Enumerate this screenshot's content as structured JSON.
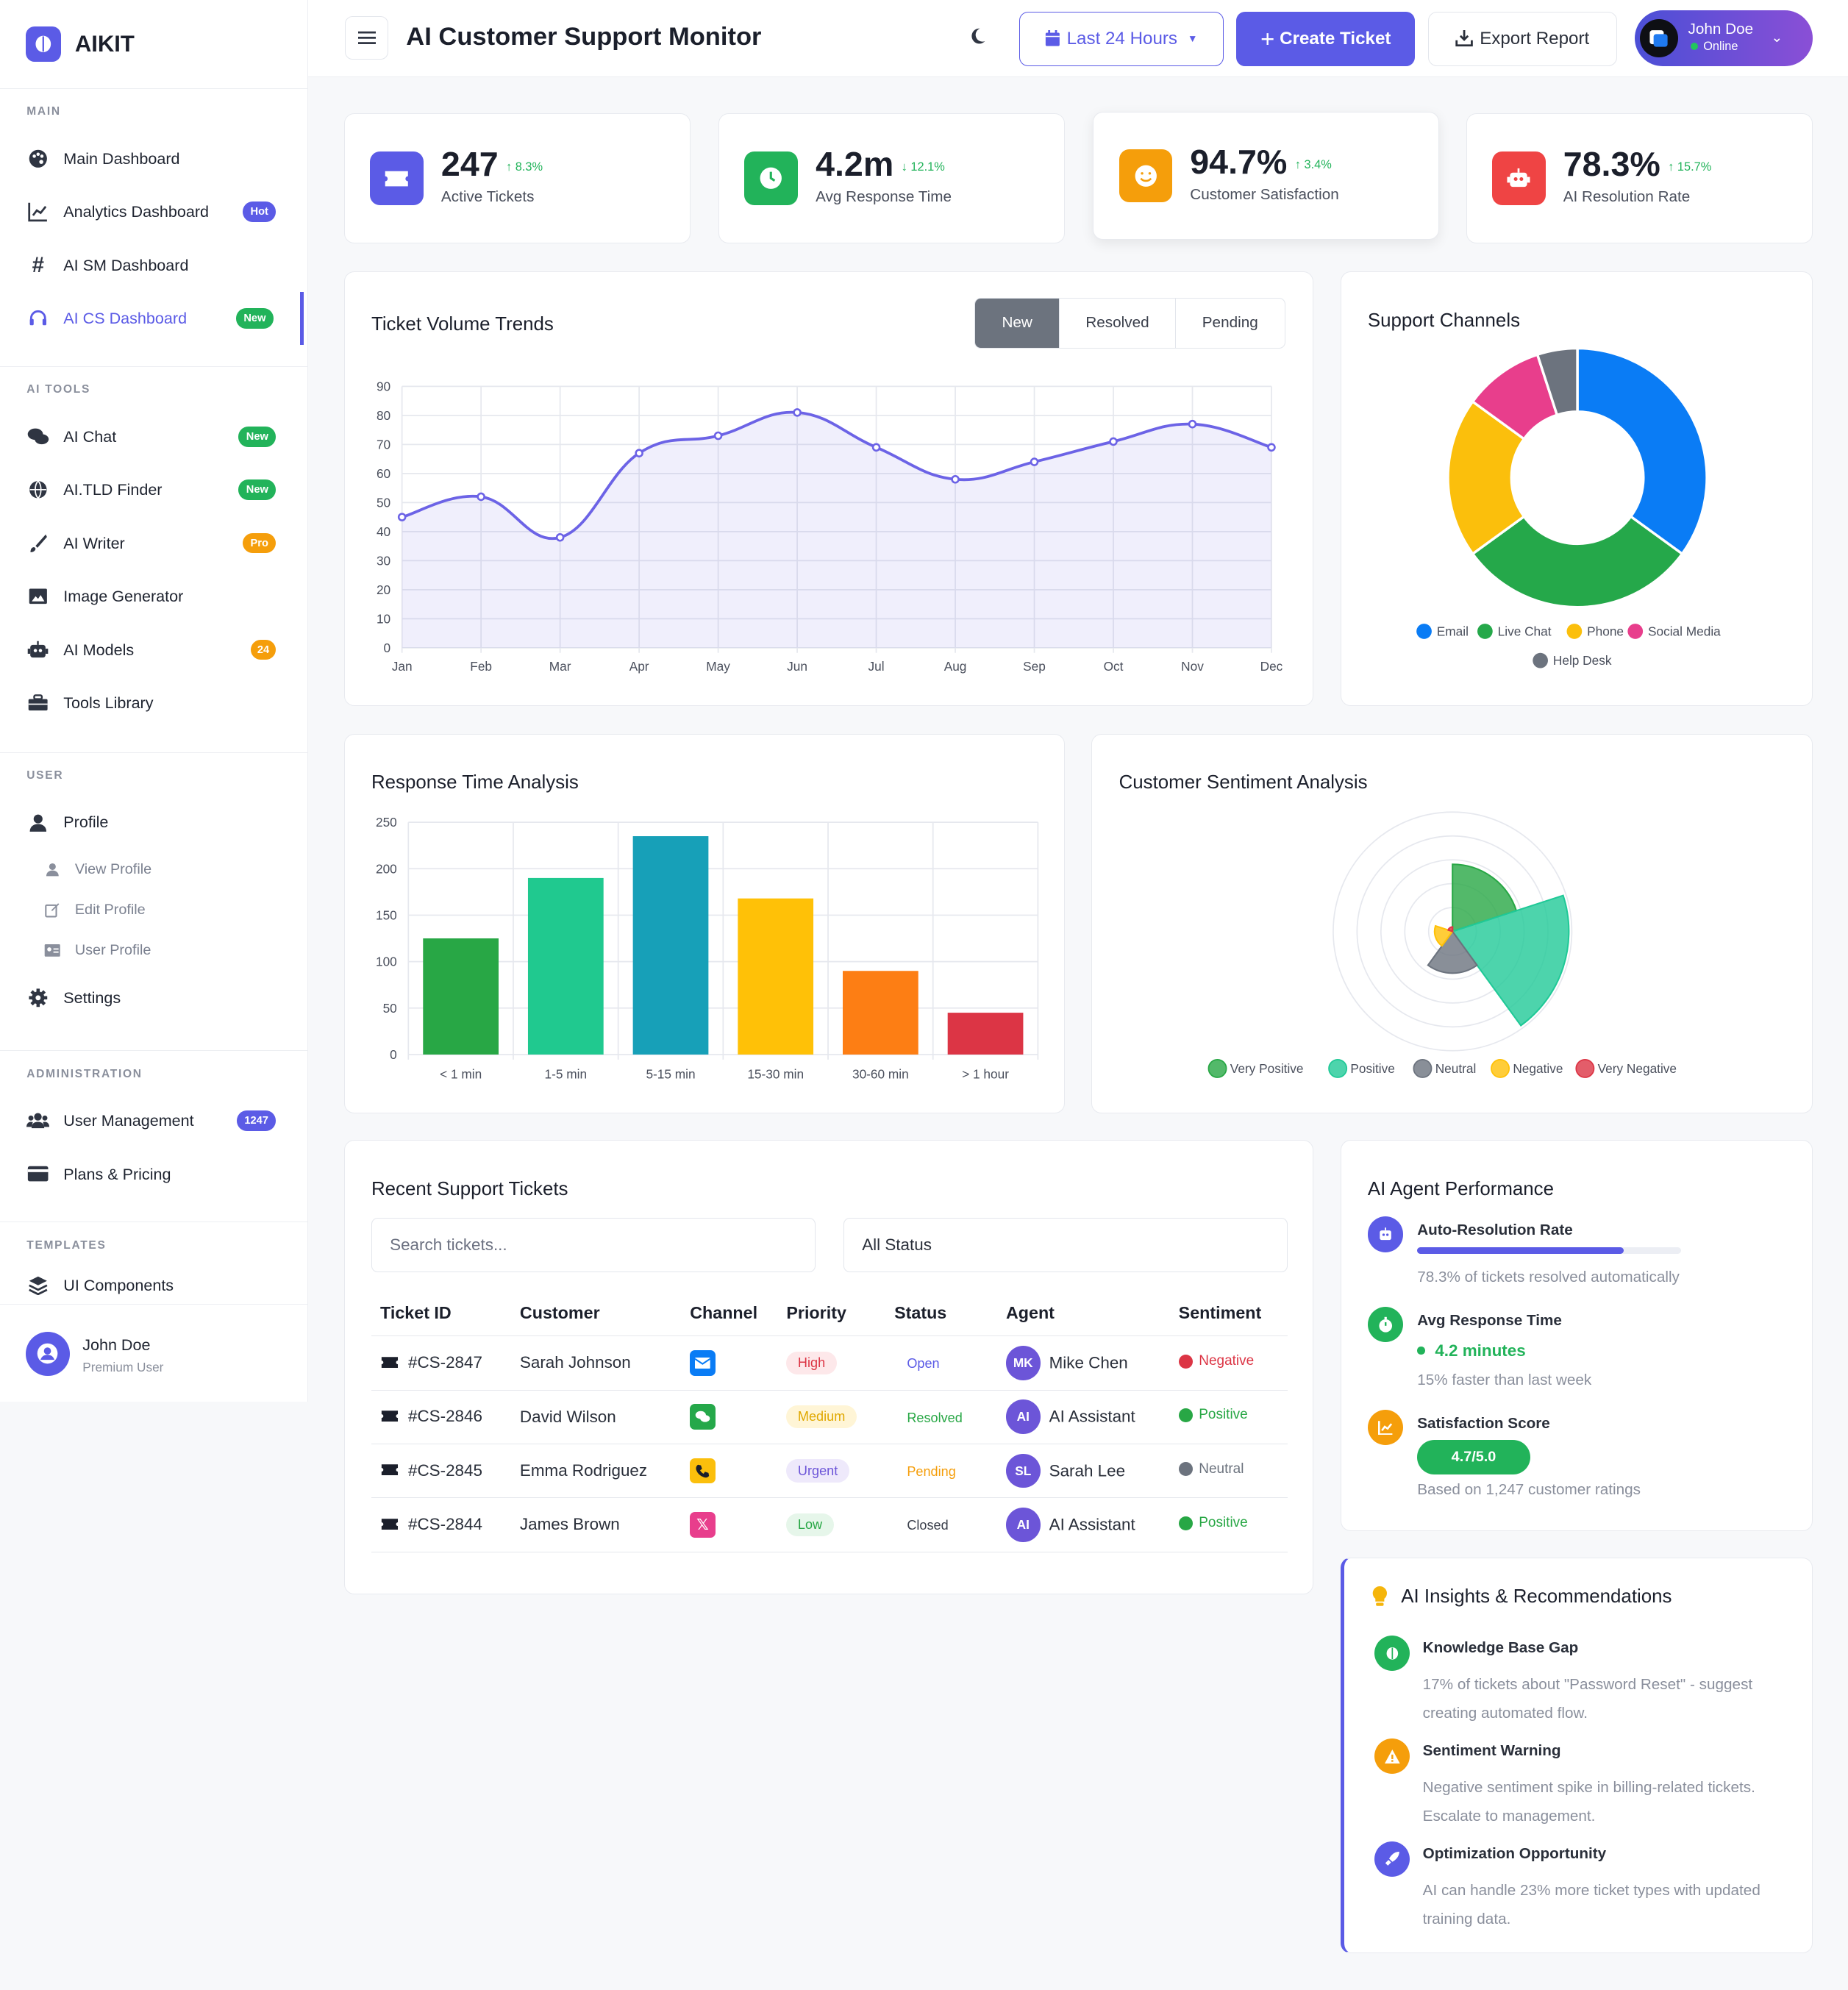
{
  "brand": {
    "name": "AIKIT"
  },
  "sidebar": {
    "main_title": "MAIN",
    "main": [
      {
        "label": "Main Dashboard"
      },
      {
        "label": "Analytics Dashboard",
        "badge": "Hot"
      },
      {
        "label": "AI SM Dashboard"
      },
      {
        "label": "AI CS Dashboard",
        "badge": "New"
      }
    ],
    "tools_title": "AI TOOLS",
    "tools": [
      {
        "label": "AI Chat",
        "badge": "New"
      },
      {
        "label": "AI.TLD Finder",
        "badge": "New"
      },
      {
        "label": "AI Writer",
        "badge": "Pro"
      },
      {
        "label": "Image Generator"
      },
      {
        "label": "AI Models",
        "badge": "24"
      },
      {
        "label": "Tools Library"
      }
    ],
    "user_title": "USER",
    "profile": "Profile",
    "profile_sub": [
      "View Profile",
      "Edit Profile",
      "User Profile"
    ],
    "settings": "Settings",
    "admin_title": "ADMINISTRATION",
    "admin": [
      {
        "label": "User Management",
        "badge": "1247"
      },
      {
        "label": "Plans & Pricing"
      }
    ],
    "templates_title": "TEMPLATES",
    "templates": [
      {
        "label": "UI Components"
      }
    ],
    "footer_user": {
      "name": "John Doe",
      "role": "Premium User"
    }
  },
  "header": {
    "title": "AI Customer Support Monitor",
    "range_label": "Last 24 Hours",
    "create_label": "Create Ticket",
    "export_label": "Export Report",
    "user_name": "John Doe",
    "user_status": "Online"
  },
  "kpis": [
    {
      "value": "247",
      "delta": "8.3%",
      "label": "Active Tickets",
      "color": "#5b5be6"
    },
    {
      "value": "4.2m",
      "delta": "12.1%",
      "label": "Avg Response Time",
      "color": "#22b35a"
    },
    {
      "value": "94.7%",
      "delta": "3.4%",
      "label": "Customer Satisfaction",
      "color": "#f59e0b"
    },
    {
      "value": "78.3%",
      "delta": "15.7%",
      "label": "AI Resolution Rate",
      "color": "#ef4444"
    }
  ],
  "volume": {
    "title": "Ticket Volume Trends",
    "tabs": [
      "New",
      "Resolved",
      "Pending"
    ]
  },
  "channels": {
    "title": "Support Channels"
  },
  "response": {
    "title": "Response Time Analysis"
  },
  "sentiment": {
    "title": "Customer Sentiment Analysis"
  },
  "tickets": {
    "title": "Recent Support Tickets",
    "search_placeholder": "Search tickets...",
    "status_filter": "All Status",
    "columns": [
      "Ticket ID",
      "Customer",
      "Channel",
      "Priority",
      "Status",
      "Agent",
      "Sentiment"
    ],
    "rows": [
      {
        "id": "#CS-2847",
        "customer": "Sarah Johnson",
        "channel": "email",
        "priority": "High",
        "status": "Open",
        "agent_initials": "MK",
        "agent": "Mike Chen",
        "sentiment": "Negative"
      },
      {
        "id": "#CS-2846",
        "customer": "David Wilson",
        "channel": "chat",
        "priority": "Medium",
        "status": "Resolved",
        "agent_initials": "AI",
        "agent": "AI Assistant",
        "sentiment": "Positive"
      },
      {
        "id": "#CS-2845",
        "customer": "Emma Rodriguez",
        "channel": "phone",
        "priority": "Urgent",
        "status": "Pending",
        "agent_initials": "SL",
        "agent": "Sarah Lee",
        "sentiment": "Neutral"
      },
      {
        "id": "#CS-2844",
        "customer": "James Brown",
        "channel": "social",
        "priority": "Low",
        "status": "Closed",
        "agent_initials": "AI",
        "agent": "AI Assistant",
        "sentiment": "Positive"
      }
    ]
  },
  "agent_perf": {
    "title": "AI Agent Performance",
    "auto_title": "Auto-Resolution Rate",
    "auto_progress": 0.783,
    "auto_desc": "78.3% of tickets resolved automatically",
    "resp_title": "Avg Response Time",
    "resp_value": "4.2 minutes",
    "resp_desc": "15% faster than last week",
    "sat_title": "Satisfaction Score",
    "sat_value": "4.7/5.0",
    "sat_desc": "Based on 1,247 customer ratings"
  },
  "insights": {
    "title": "AI Insights & Recommendations",
    "items": [
      {
        "title": "Knowledge Base Gap",
        "line1": "17% of tickets about \"Password Reset\" - suggest",
        "line2": "creating automated flow."
      },
      {
        "title": "Sentiment Warning",
        "line1": "Negative sentiment spike in billing-related tickets.",
        "line2": "Escalate to management."
      },
      {
        "title": "Optimization Opportunity",
        "line1": "AI can handle 23% more ticket types with updated",
        "line2": "training data."
      }
    ]
  },
  "chart_data": [
    {
      "type": "line",
      "title": "Ticket Volume Trends",
      "categories": [
        "Jan",
        "Feb",
        "Mar",
        "Apr",
        "May",
        "Jun",
        "Jul",
        "Aug",
        "Sep",
        "Oct",
        "Nov",
        "Dec"
      ],
      "series": [
        {
          "name": "New",
          "values": [
            45,
            52,
            38,
            67,
            73,
            81,
            69,
            58,
            64,
            71,
            77,
            69
          ]
        }
      ],
      "ylim": [
        0,
        90
      ],
      "yticks": [
        0,
        10,
        20,
        30,
        40,
        50,
        60,
        70,
        80,
        90
      ],
      "color": "#6c63e6"
    },
    {
      "type": "pie",
      "title": "Support Channels",
      "labels": [
        "Email",
        "Live Chat",
        "Phone",
        "Social Media",
        "Help Desk"
      ],
      "values": [
        35,
        30,
        20,
        10,
        5
      ],
      "colors": [
        "#0a7cf5",
        "#25a84a",
        "#fbbf0c",
        "#e83e8c",
        "#6c737e"
      ]
    },
    {
      "type": "bar",
      "title": "Response Time Analysis",
      "categories": [
        "< 1 min",
        "1-5 min",
        "5-15 min",
        "15-30 min",
        "30-60 min",
        "> 1 hour"
      ],
      "values": [
        125,
        190,
        235,
        168,
        90,
        45
      ],
      "ylim": [
        0,
        250
      ],
      "yticks": [
        0,
        50,
        100,
        150,
        200,
        250
      ],
      "colors": [
        "#28a745",
        "#20c98f",
        "#17a0b8",
        "#ffc107",
        "#fd7e14",
        "#dc3545"
      ]
    },
    {
      "type": "polar",
      "title": "Customer Sentiment Analysis",
      "labels": [
        "Very Positive",
        "Positive",
        "Neutral",
        "Negative",
        "Very Negative"
      ],
      "values": [
        45,
        78,
        28,
        12,
        3
      ],
      "colors": [
        "#28a745",
        "#20c997",
        "#6c737e",
        "#ffc107",
        "#dc3545"
      ]
    }
  ]
}
